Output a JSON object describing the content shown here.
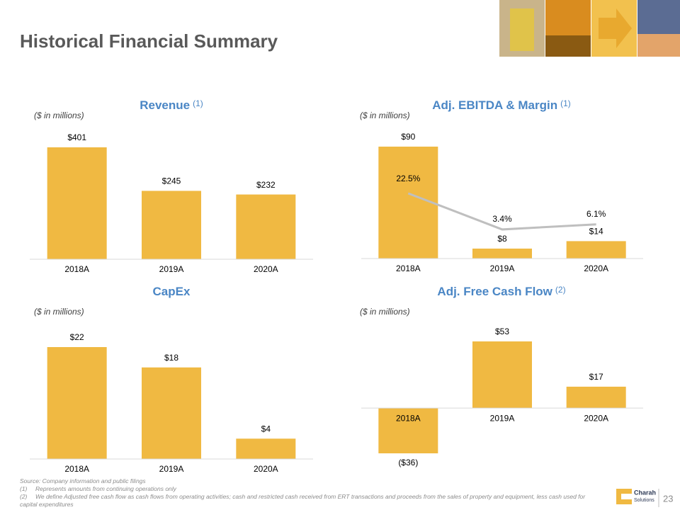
{
  "header": {
    "title": "Historical Financial Summary"
  },
  "chart_data": [
    {
      "type": "bar",
      "title": "Revenue",
      "title_note": "(1)",
      "subtitle": "($ in millions)",
      "categories": [
        "2018A",
        "2019A",
        "2020A"
      ],
      "values": [
        401,
        245,
        232
      ],
      "value_labels": [
        "$401",
        "$245",
        "$232"
      ],
      "color": "#f0b942"
    },
    {
      "type": "combo",
      "title": "Adj. EBITDA & Margin",
      "title_note": "(1)",
      "subtitle": "($ in millions)",
      "categories": [
        "2018A",
        "2019A",
        "2020A"
      ],
      "series": [
        {
          "type": "bar",
          "color": "#f0b942",
          "values": [
            90,
            8,
            14
          ],
          "value_labels": [
            "$90",
            "$8",
            "$14"
          ]
        },
        {
          "type": "line",
          "axis": "y2",
          "color": "#bfbfbf",
          "values": [
            22.5,
            3.4,
            6.1
          ],
          "value_labels": [
            "22.5%",
            "3.4%",
            "6.1%"
          ]
        }
      ]
    },
    {
      "type": "bar",
      "title": "CapEx",
      "subtitle": "($ in millions)",
      "categories": [
        "2018A",
        "2019A",
        "2020A"
      ],
      "values": [
        22,
        18,
        4
      ],
      "value_labels": [
        "$22",
        "$18",
        "$4"
      ],
      "color": "#f0b942"
    },
    {
      "type": "bar",
      "title": "Adj. Free Cash Flow",
      "title_note": "(2)",
      "subtitle": "($ in millions)",
      "categories": [
        "2018A",
        "2019A",
        "2020A"
      ],
      "values": [
        -36,
        53,
        17
      ],
      "value_labels": [
        "($36)",
        "$53",
        "$17"
      ],
      "color": "#f0b942"
    }
  ],
  "footnotes": {
    "source": "Source: Company information and public filings",
    "notes": [
      {
        "marker": "(1)",
        "text": "Represents amounts from continuing operations only"
      },
      {
        "marker": "(2)",
        "text": "We define Adjusted free cash flow as cash flows from operating activities; cash and restricted cash received from ERT transactions and proceeds from the sales of property and equipment, less cash used for capital expenditures"
      }
    ]
  },
  "logo": {
    "name": "Charah",
    "tagline": "Solutions"
  },
  "page_number": "23"
}
